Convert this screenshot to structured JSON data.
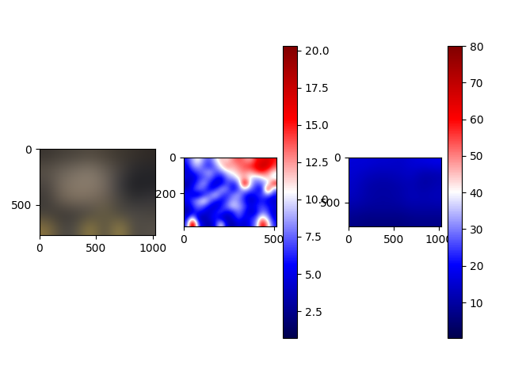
{
  "chart_data": [
    {
      "type": "image",
      "cells_rgb": [
        [
          "#3a3530",
          "#453f38",
          "#4a443c",
          "#524a40",
          "#4a4238",
          "#3e3830",
          "#38322c",
          "#302a26"
        ],
        [
          "#5a5248",
          "#6a6258",
          "#7a7064",
          "#857a6c",
          "#6a6258",
          "#4a4440",
          "#2a2a2e",
          "#26262a"
        ],
        [
          "#4a4440",
          "#7a6e60",
          "#8a7c6c",
          "#8c7e6e",
          "#7a6e62",
          "#3a3a3e",
          "#1e1e22",
          "#222226"
        ],
        [
          "#3e3a36",
          "#6e6254",
          "#7e705f",
          "#7a6c5c",
          "#6a5e52",
          "#4a4640",
          "#2e2e30",
          "#38363a"
        ],
        [
          "#44403c",
          "#3a3632",
          "#403c38",
          "#4a4642",
          "#6a6040",
          "#4a4640",
          "#504c48",
          "#48443e"
        ],
        [
          "#8a7440",
          "#4a4640",
          "#524e48",
          "#9a8440",
          "#4e4a44",
          "#a08a46",
          "#4c4842",
          "#565048"
        ]
      ],
      "xlim": [
        0,
        1024
      ],
      "ylim": [
        768,
        0
      ],
      "xticks": [
        0,
        500,
        1000
      ],
      "yticks": [
        0,
        500
      ]
    },
    {
      "type": "heatmap",
      "cells": [
        [
          6,
          9,
          11,
          8,
          7,
          10,
          12,
          11,
          13,
          14,
          13,
          12,
          15,
          16,
          17,
          15
        ],
        [
          5,
          8,
          9,
          7,
          6,
          8,
          11,
          13,
          12,
          13,
          14,
          15,
          16,
          18,
          17,
          14
        ],
        [
          4,
          6,
          7,
          8,
          9,
          7,
          8,
          10,
          11,
          12,
          13,
          12,
          14,
          15,
          13,
          11
        ],
        [
          5,
          4,
          6,
          7,
          8,
          6,
          5,
          8,
          9,
          11,
          12,
          10,
          9,
          10,
          12,
          9
        ],
        [
          3,
          5,
          7,
          9,
          6,
          4,
          5,
          7,
          6,
          8,
          18,
          10,
          7,
          8,
          9,
          16
        ],
        [
          4,
          6,
          8,
          7,
          5,
          6,
          9,
          8,
          5,
          7,
          10,
          8,
          6,
          5,
          17,
          8
        ],
        [
          6,
          5,
          4,
          6,
          8,
          10,
          7,
          6,
          8,
          9,
          6,
          5,
          6,
          7,
          8,
          6
        ],
        [
          5,
          7,
          9,
          11,
          8,
          6,
          5,
          7,
          9,
          8,
          6,
          4,
          5,
          6,
          5,
          4
        ],
        [
          4,
          6,
          8,
          7,
          5,
          4,
          6,
          8,
          10,
          9,
          7,
          5,
          6,
          7,
          6,
          5
        ],
        [
          3,
          5,
          6,
          5,
          4,
          6,
          7,
          5,
          6,
          8,
          6,
          4,
          5,
          8,
          7,
          4
        ],
        [
          5,
          10,
          4,
          3,
          5,
          6,
          4,
          3,
          5,
          7,
          5,
          6,
          7,
          12,
          9,
          5
        ],
        [
          6,
          20,
          7,
          4,
          3,
          6,
          11,
          4,
          3,
          5,
          4,
          6,
          8,
          17,
          12,
          6
        ]
      ],
      "xlim": [
        0,
        512
      ],
      "ylim": [
        384,
        0
      ],
      "xticks": [
        0,
        500
      ],
      "yticks": [
        0,
        200
      ],
      "colorbar_range": [
        0.7,
        20.3
      ],
      "colorbar_ticks": [
        {
          "value": 2.5,
          "label": "2.5"
        },
        {
          "value": 5,
          "label": "5.0"
        },
        {
          "value": 7.5,
          "label": "7.5"
        },
        {
          "value": 10,
          "label": "10.0"
        },
        {
          "value": 12.5,
          "label": "12.5"
        },
        {
          "value": 15,
          "label": "15.0"
        },
        {
          "value": 17.5,
          "label": "17.5"
        },
        {
          "value": 20,
          "label": "20.0"
        }
      ]
    },
    {
      "type": "heatmap",
      "cells": [
        [
          16,
          16,
          15,
          15,
          14,
          16,
          17,
          18
        ],
        [
          15,
          13,
          12,
          12,
          13,
          14,
          10,
          11
        ],
        [
          14,
          11,
          10,
          10,
          11,
          12,
          10,
          12
        ],
        [
          13,
          11,
          10,
          10,
          11,
          13,
          12,
          13
        ],
        [
          10,
          9,
          9,
          9,
          9,
          10,
          10,
          10
        ],
        [
          7,
          6,
          6,
          6,
          6,
          7,
          7,
          7
        ]
      ],
      "xlim": [
        0,
        1024
      ],
      "ylim": [
        768,
        0
      ],
      "xticks": [
        0,
        500,
        1000
      ],
      "yticks": [
        0,
        500
      ],
      "colorbar_range": [
        0.3,
        80
      ],
      "colorbar_ticks": [
        10,
        20,
        30,
        40,
        50,
        60,
        70,
        80
      ]
    }
  ]
}
